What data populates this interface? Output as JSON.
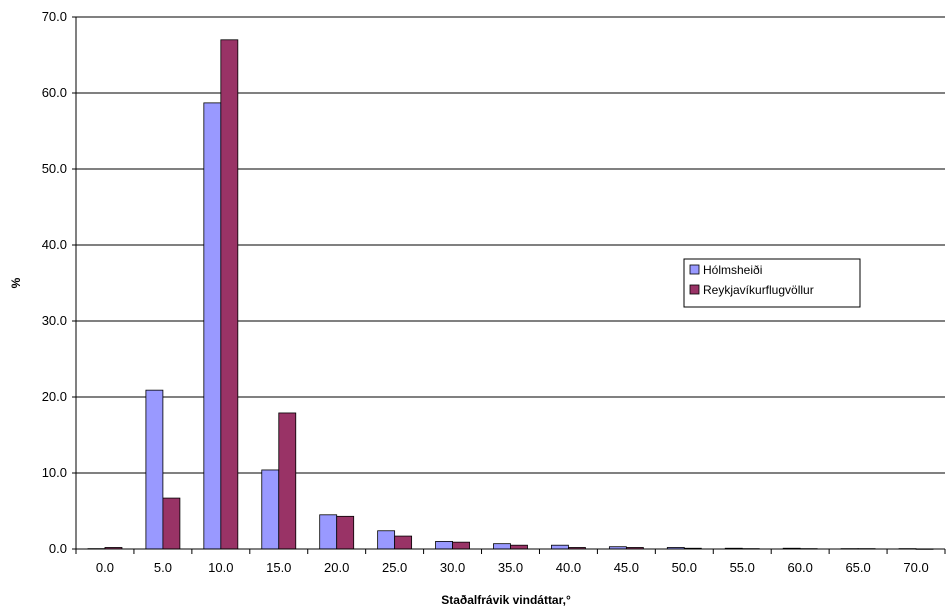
{
  "chart_data": {
    "type": "bar",
    "categories": [
      "0.0",
      "5.0",
      "10.0",
      "15.0",
      "20.0",
      "25.0",
      "30.0",
      "35.0",
      "40.0",
      "45.0",
      "50.0",
      "55.0",
      "60.0",
      "65.0",
      "70.0"
    ],
    "series": [
      {
        "name": "Hólmsheiði",
        "color": "#9999ff",
        "values": [
          0.05,
          20.9,
          58.7,
          10.4,
          4.5,
          2.4,
          1.0,
          0.7,
          0.5,
          0.3,
          0.2,
          0.1,
          0.1,
          0.05,
          0.05
        ]
      },
      {
        "name": "Reykjavíkurflugvöllur",
        "color": "#993366",
        "values": [
          0.2,
          6.7,
          67.0,
          17.9,
          4.3,
          1.7,
          0.9,
          0.5,
          0.2,
          0.2,
          0.1,
          0.05,
          0.05,
          0.05,
          0.02
        ]
      }
    ],
    "title": "",
    "xlabel": "Staðalfrávik vindáttar,°",
    "ylabel": "%",
    "ylim": [
      0,
      70
    ],
    "yticks": [
      "0.0",
      "10.0",
      "20.0",
      "30.0",
      "40.0",
      "50.0",
      "60.0",
      "70.0"
    ],
    "grid": true,
    "legend_position": "right"
  }
}
